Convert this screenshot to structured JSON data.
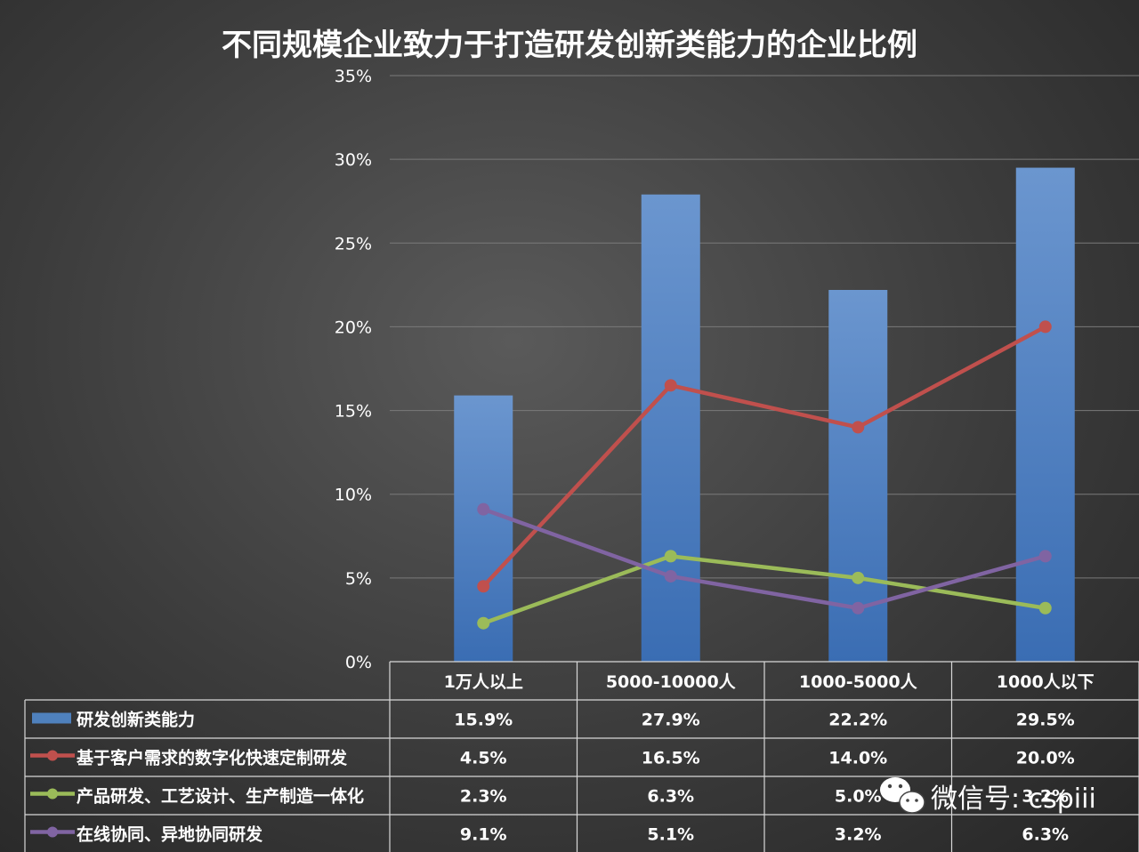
{
  "chart_data": {
    "type": "bar",
    "title": "不同规模企业致力于打造研发创新类能力的企业比例",
    "categories": [
      "1万人以上",
      "5000-10000人",
      "1000-5000人",
      "1000人以下"
    ],
    "ylim": [
      0,
      35
    ],
    "yticks": [
      0,
      5,
      10,
      15,
      20,
      25,
      30,
      35
    ],
    "ytick_suffix": "%",
    "grid": true,
    "legend": "data-table-bottom",
    "series": [
      {
        "name": "研发创新类能力",
        "kind": "bar",
        "color": "#4f81bd",
        "values": [
          15.9,
          27.9,
          22.2,
          29.5
        ],
        "labels": [
          "15.9%",
          "27.9%",
          "22.2%",
          "29.5%"
        ]
      },
      {
        "name": "基于客户需求的数字化快速定制研发",
        "kind": "line",
        "color": "#c0504d",
        "values": [
          4.5,
          16.5,
          14.0,
          20.0
        ],
        "labels": [
          "4.5%",
          "16.5%",
          "14.0%",
          "20.0%"
        ]
      },
      {
        "name": "产品研发、工艺设计、生产制造一体化",
        "kind": "line",
        "color": "#9bbb59",
        "values": [
          2.3,
          6.3,
          5.0,
          3.2
        ],
        "labels": [
          "2.3%",
          "6.3%",
          "5.0%",
          "3.2%"
        ]
      },
      {
        "name": "在线协同、异地协同研发",
        "kind": "line",
        "color": "#8064a2",
        "values": [
          9.1,
          5.1,
          3.2,
          6.3
        ],
        "labels": [
          "9.1%",
          "5.1%",
          "3.2%",
          "6.3%"
        ]
      }
    ]
  },
  "watermark": {
    "text": "微信号: cspiii",
    "icon": "wechat-icon"
  }
}
